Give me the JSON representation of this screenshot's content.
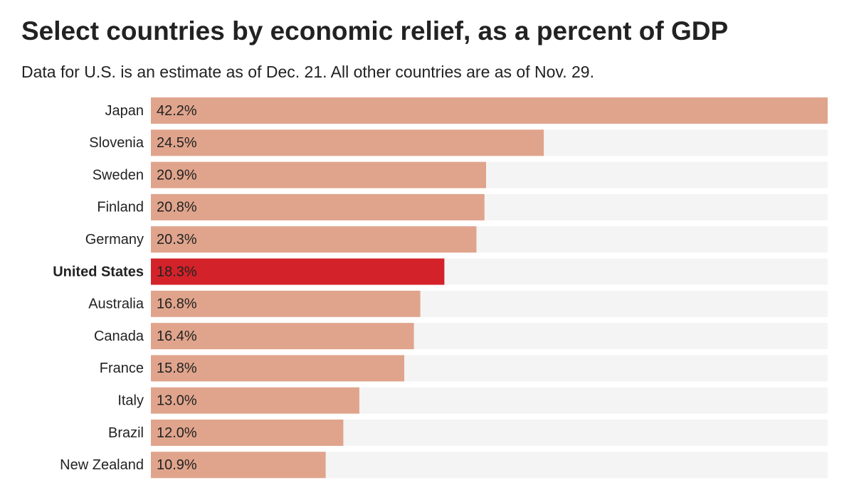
{
  "chart_data": {
    "type": "hbar",
    "title": "Select countries by economic relief, as a percent of GDP",
    "subtitle": "Data for U.S. is an estimate as of Dec. 21. All other countries are as of Nov. 29.",
    "categories": [
      "Japan",
      "Slovenia",
      "Sweden",
      "Finland",
      "Germany",
      "United States",
      "Australia",
      "Canada",
      "France",
      "Italy",
      "Brazil",
      "New Zealand"
    ],
    "values": [
      42.2,
      24.5,
      20.9,
      20.8,
      20.3,
      18.3,
      16.8,
      16.4,
      15.8,
      13.0,
      12.0,
      10.9
    ],
    "value_labels": [
      "42.2%",
      "24.5%",
      "20.9%",
      "20.8%",
      "20.3%",
      "18.3%",
      "16.8%",
      "16.4%",
      "15.8%",
      "13.0%",
      "12.0%",
      "10.9%"
    ],
    "color": "#e0a48c",
    "colors": [
      "#e0a48c",
      "#e0a48c",
      "#e0a48c",
      "#e0a48c",
      "#e0a48c",
      "#d3222a",
      "#e0a48c",
      "#e0a48c",
      "#e0a48c",
      "#e0a48c",
      "#e0a48c",
      "#e0a48c"
    ],
    "xlim": [
      0,
      42.2
    ]
  }
}
